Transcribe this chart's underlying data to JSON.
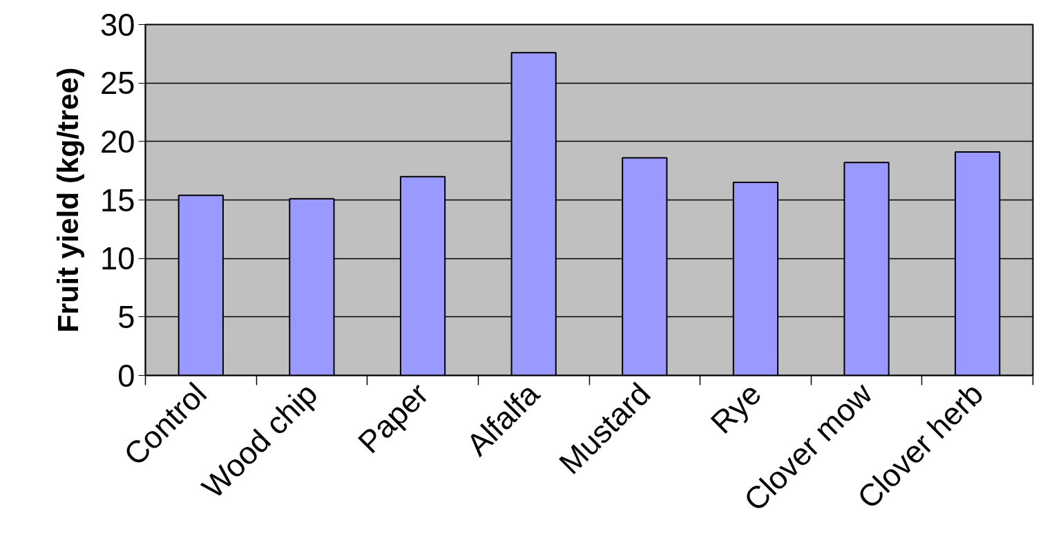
{
  "chart_data": {
    "type": "bar",
    "ylabel": "Fruit yield (kg/tree)",
    "categories": [
      "Control",
      "Wood chip",
      "Paper",
      "Alfalfa",
      "Mustard",
      "Rye",
      "Clover mow",
      "Clover herb"
    ],
    "values": [
      15.4,
      15.1,
      17.0,
      27.6,
      18.6,
      16.5,
      18.2,
      19.1
    ],
    "color": "#9999ff",
    "ylim": [
      0,
      30
    ],
    "yticks": [
      0,
      5,
      10,
      15,
      20,
      25,
      30
    ],
    "grid": "y"
  }
}
